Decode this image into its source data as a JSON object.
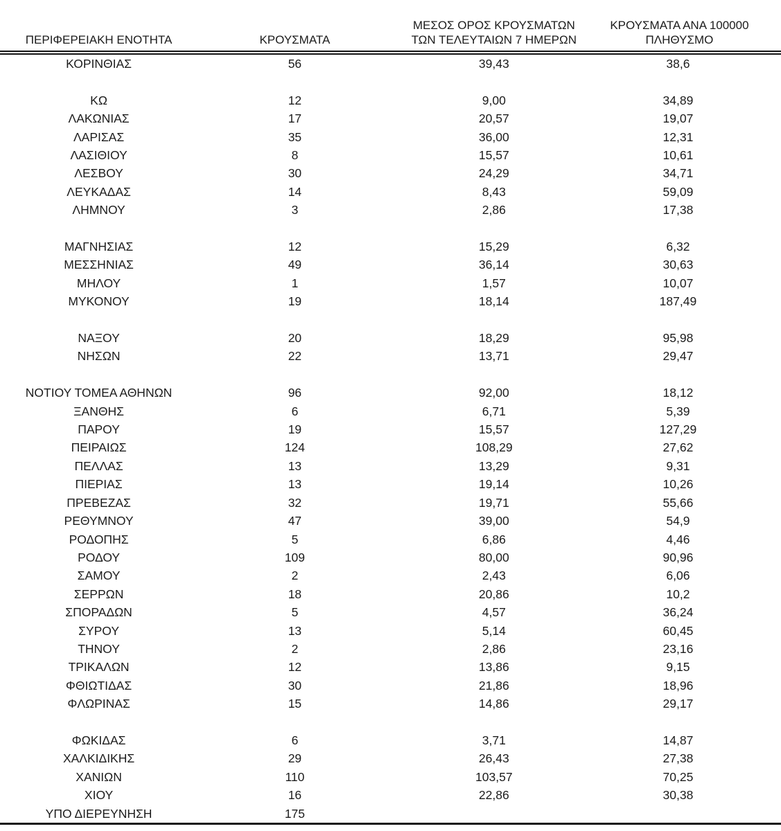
{
  "document": {
    "kind": "covid-cases-by-regional-unit-table",
    "language": "el"
  },
  "colors": {
    "background": "#ffffff",
    "text": "#1c1c1c",
    "border": "#141414"
  },
  "table": {
    "headers": {
      "region": "ΠΕΡΙΦΕΡΕΙΑΚΗ ΕΝΟΤΗΤΑ",
      "cases": "ΚΡΟΥΣΜΑΤΑ",
      "avg7": "ΜΕΣΟΣ ΟΡΟΣ ΚΡΟΥΣΜΑΤΩΝ ΤΩΝ ΤΕΛΕΥΤΑΙΩΝ 7 ΗΜΕΡΩΝ",
      "per100k": "ΚΡΟΥΣΜΑΤΑ ΑΝΑ 100000 ΠΛΗΘΥΣΜΟ"
    },
    "rows": [
      {
        "region": "ΚΟΡΙΝΘΙΑΣ",
        "cases": "56",
        "avg7": "39,43",
        "per100k": "38,6"
      },
      {
        "region": "",
        "cases": "",
        "avg7": "",
        "per100k": ""
      },
      {
        "region": "ΚΩ",
        "cases": "12",
        "avg7": "9,00",
        "per100k": "34,89"
      },
      {
        "region": "ΛΑΚΩΝΙΑΣ",
        "cases": "17",
        "avg7": "20,57",
        "per100k": "19,07"
      },
      {
        "region": "ΛΑΡΙΣΑΣ",
        "cases": "35",
        "avg7": "36,00",
        "per100k": "12,31"
      },
      {
        "region": "ΛΑΣΙΘΙΟΥ",
        "cases": "8",
        "avg7": "15,57",
        "per100k": "10,61"
      },
      {
        "region": "ΛΕΣΒΟΥ",
        "cases": "30",
        "avg7": "24,29",
        "per100k": "34,71"
      },
      {
        "region": "ΛΕΥΚΑΔΑΣ",
        "cases": "14",
        "avg7": "8,43",
        "per100k": "59,09"
      },
      {
        "region": "ΛΗΜΝΟΥ",
        "cases": "3",
        "avg7": "2,86",
        "per100k": "17,38"
      },
      {
        "region": "",
        "cases": "",
        "avg7": "",
        "per100k": ""
      },
      {
        "region": "ΜΑΓΝΗΣΙΑΣ",
        "cases": "12",
        "avg7": "15,29",
        "per100k": "6,32"
      },
      {
        "region": "ΜΕΣΣΗΝΙΑΣ",
        "cases": "49",
        "avg7": "36,14",
        "per100k": "30,63"
      },
      {
        "region": "ΜΗΛΟΥ",
        "cases": "1",
        "avg7": "1,57",
        "per100k": "10,07"
      },
      {
        "region": "ΜΥΚΟΝΟΥ",
        "cases": "19",
        "avg7": "18,14",
        "per100k": "187,49"
      },
      {
        "region": "",
        "cases": "",
        "avg7": "",
        "per100k": ""
      },
      {
        "region": "ΝΑΞΟΥ",
        "cases": "20",
        "avg7": "18,29",
        "per100k": "95,98"
      },
      {
        "region": "ΝΗΣΩΝ",
        "cases": "22",
        "avg7": "13,71",
        "per100k": "29,47"
      },
      {
        "region": "",
        "cases": "",
        "avg7": "",
        "per100k": ""
      },
      {
        "region": "ΝΟΤΙΟΥ ΤΟΜΕΑ ΑΘΗΝΩΝ",
        "cases": "96",
        "avg7": "92,00",
        "per100k": "18,12"
      },
      {
        "region": "ΞΑΝΘΗΣ",
        "cases": "6",
        "avg7": "6,71",
        "per100k": "5,39"
      },
      {
        "region": "ΠΑΡΟΥ",
        "cases": "19",
        "avg7": "15,57",
        "per100k": "127,29"
      },
      {
        "region": "ΠΕΙΡΑΙΩΣ",
        "cases": "124",
        "avg7": "108,29",
        "per100k": "27,62"
      },
      {
        "region": "ΠΕΛΛΑΣ",
        "cases": "13",
        "avg7": "13,29",
        "per100k": "9,31"
      },
      {
        "region": "ΠΙΕΡΙΑΣ",
        "cases": "13",
        "avg7": "19,14",
        "per100k": "10,26"
      },
      {
        "region": "ΠΡΕΒΕΖΑΣ",
        "cases": "32",
        "avg7": "19,71",
        "per100k": "55,66"
      },
      {
        "region": "ΡΕΘΥΜΝΟΥ",
        "cases": "47",
        "avg7": "39,00",
        "per100k": "54,9"
      },
      {
        "region": "ΡΟΔΟΠΗΣ",
        "cases": "5",
        "avg7": "6,86",
        "per100k": "4,46"
      },
      {
        "region": "ΡΟΔΟΥ",
        "cases": "109",
        "avg7": "80,00",
        "per100k": "90,96"
      },
      {
        "region": "ΣΑΜΟΥ",
        "cases": "2",
        "avg7": "2,43",
        "per100k": "6,06"
      },
      {
        "region": "ΣΕΡΡΩΝ",
        "cases": "18",
        "avg7": "20,86",
        "per100k": "10,2"
      },
      {
        "region": "ΣΠΟΡΑΔΩΝ",
        "cases": "5",
        "avg7": "4,57",
        "per100k": "36,24"
      },
      {
        "region": "ΣΥΡΟΥ",
        "cases": "13",
        "avg7": "5,14",
        "per100k": "60,45"
      },
      {
        "region": "ΤΗΝΟΥ",
        "cases": "2",
        "avg7": "2,86",
        "per100k": "23,16"
      },
      {
        "region": "ΤΡΙΚΑΛΩΝ",
        "cases": "12",
        "avg7": "13,86",
        "per100k": "9,15"
      },
      {
        "region": "ΦΘΙΩΤΙΔΑΣ",
        "cases": "30",
        "avg7": "21,86",
        "per100k": "18,96"
      },
      {
        "region": "ΦΛΩΡΙΝΑΣ",
        "cases": "15",
        "avg7": "14,86",
        "per100k": "29,17"
      },
      {
        "region": "",
        "cases": "",
        "avg7": "",
        "per100k": ""
      },
      {
        "region": "ΦΩΚΙΔΑΣ",
        "cases": "6",
        "avg7": "3,71",
        "per100k": "14,87"
      },
      {
        "region": "ΧΑΛΚΙΔΙΚΗΣ",
        "cases": "29",
        "avg7": "26,43",
        "per100k": "27,38"
      },
      {
        "region": "ΧΑΝΙΩΝ",
        "cases": "110",
        "avg7": "103,57",
        "per100k": "70,25"
      },
      {
        "region": "ΧΙΟΥ",
        "cases": "16",
        "avg7": "22,86",
        "per100k": "30,38"
      },
      {
        "region": "ΥΠΟ ΔΙΕΡΕΥΝΗΣΗ",
        "cases": "175",
        "avg7": "",
        "per100k": ""
      }
    ]
  }
}
